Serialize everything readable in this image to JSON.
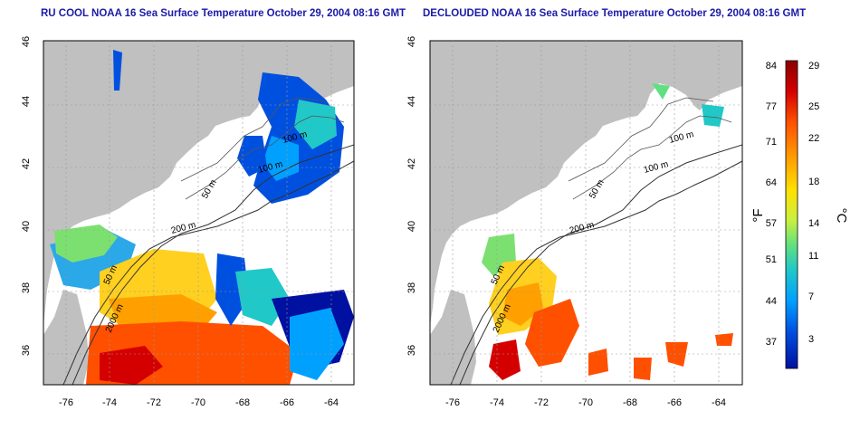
{
  "titles": {
    "left": "RU COOL NOAA 16 Sea Surface Temperature October 29, 2004 08:16 GMT",
    "right": "DECLOUDED NOAA 16 Sea Surface Temperature October 29, 2004 08:16 GMT"
  },
  "axes": {
    "lon_ticks": [
      "-76",
      "-74",
      "-72",
      "-70",
      "-68",
      "-66",
      "-64"
    ],
    "lat_ticks": [
      "46",
      "44",
      "42",
      "40",
      "38",
      "36"
    ]
  },
  "contour_labels": [
    "100 m",
    "100 m",
    "50 m",
    "200 m",
    "50 m",
    "2000 m"
  ],
  "colorbar": {
    "f_label": "°F",
    "c_label": "°C",
    "f_ticks": [
      "84",
      "77",
      "71",
      "64",
      "57",
      "51",
      "44",
      "37"
    ],
    "c_ticks": [
      "29",
      "25",
      "22",
      "18",
      "14",
      "11",
      "7",
      "3"
    ],
    "colors": [
      "#8b0000",
      "#d40000",
      "#ff5000",
      "#ffa000",
      "#ffe000",
      "#c8f040",
      "#60e080",
      "#20c8c8",
      "#00a0ff",
      "#0050e0",
      "#0010a0"
    ]
  },
  "colors": {
    "land": "#c0c0c0",
    "title": "#1a1aa8",
    "grid": "#999999"
  }
}
